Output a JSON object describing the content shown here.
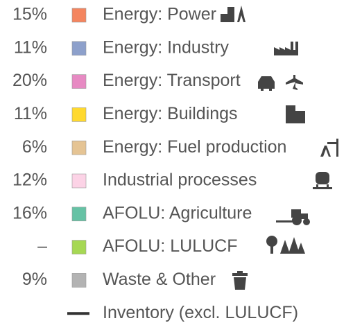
{
  "legend": {
    "items": [
      {
        "share": "15%",
        "label": "Energy: Power",
        "color": "#f4855f"
      },
      {
        "share": "11%",
        "label": "Energy: Industry",
        "color": "#8da0cb"
      },
      {
        "share": "20%",
        "label": "Energy: Transport",
        "color": "#e78ac3"
      },
      {
        "share": "11%",
        "label": "Energy: Buildings",
        "color": "#ffd92f"
      },
      {
        "share": "6%",
        "label": "Energy: Fuel production",
        "color": "#e5c494"
      },
      {
        "share": "12%",
        "label": "Industrial processes",
        "color": "#fcd3e6"
      },
      {
        "share": "16%",
        "label": "AFOLU: Agriculture",
        "color": "#66c2a5"
      },
      {
        "share": "–",
        "label": "AFOLU: LULUCF",
        "color": "#a6d854"
      },
      {
        "share": "9%",
        "label": "Waste & Other",
        "color": "#b3b3b3"
      }
    ],
    "line_item": {
      "label": "Inventory (excl. LULUCF)",
      "color": "#333333"
    }
  }
}
